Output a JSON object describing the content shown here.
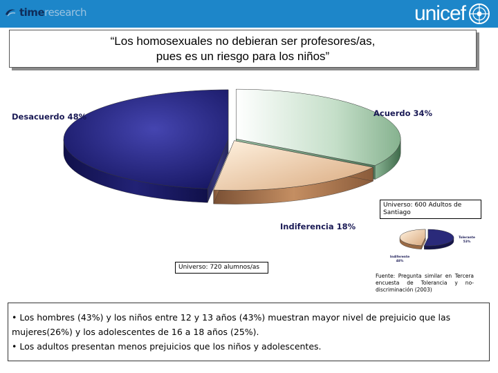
{
  "header": {
    "left_logo_bold": "time",
    "left_logo_light": "research",
    "right_logo": "unicef"
  },
  "title": "“Los homosexuales no debieran ser profesores/as,\npues es un riesgo para los niños”",
  "colors": {
    "header_band": "#1d86c9",
    "desacuerdo": "#27277d",
    "acuerdo": "#a6ccae",
    "indiferencia": "#e6bc96"
  },
  "chart_data": [
    {
      "type": "pie",
      "title": "",
      "categories": [
        "Acuerdo 34%",
        "Indiferencia 18%",
        "Desacuerdo 48%"
      ],
      "values": [
        34,
        18,
        48
      ],
      "unit": "%",
      "style": "3d-exploded",
      "note": "Universo: 720 alumnos/as"
    },
    {
      "type": "pie",
      "title": "",
      "categories": [
        "Tolerante 53%",
        "Indiferente 48%"
      ],
      "values": [
        53,
        48
      ],
      "unit": "%",
      "style": "3d-exploded",
      "note": "Universo: 600 Adultos de Santiago"
    }
  ],
  "notes": {
    "main_universe": "Universo: 720 alumnos/as",
    "adults_universe": "Universo: 600 Adultos de Santiago",
    "source": "Fuente: Pregunta similar en Tercera encuesta de Tolerancia y no-discriminación (2003)"
  },
  "bullets": [
    "• Los hombres (43%) y los niños entre 12 y 13 años (43%) muestran mayor nivel de prejuicio que las mujeres(26%) y los adolescentes de 16 a 18 años (25%).",
    "• Los adultos presentan menos prejuicios que los niños y adolescentes."
  ]
}
